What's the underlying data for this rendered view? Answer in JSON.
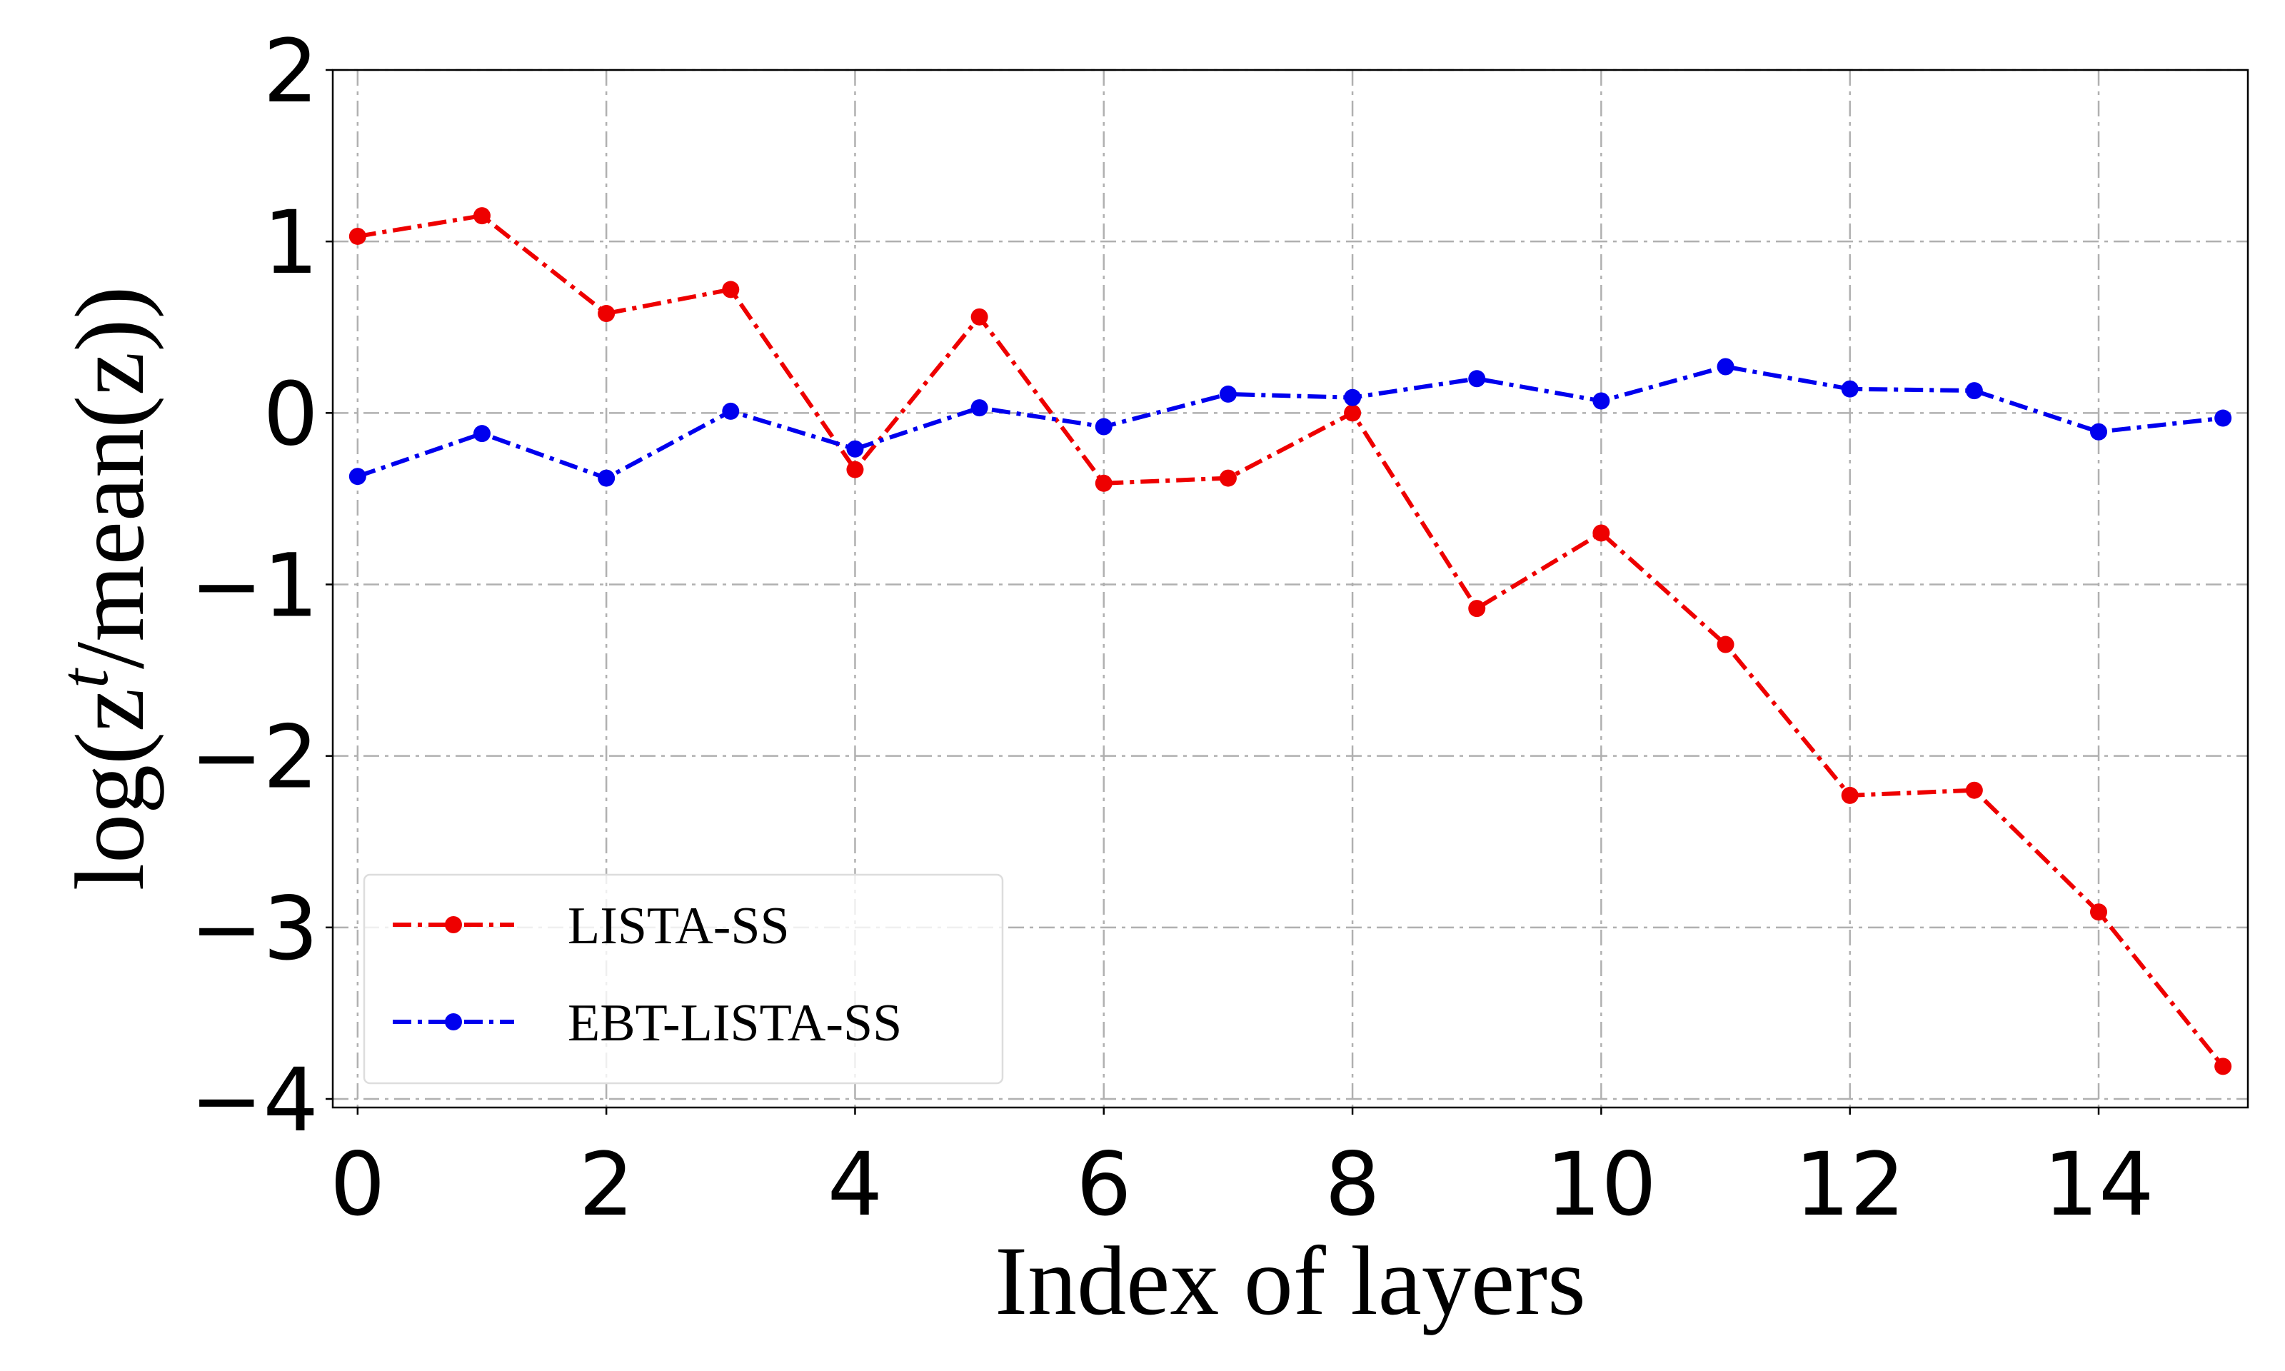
{
  "chart_data": {
    "type": "line",
    "xlabel": "Index of layers",
    "ylabel": [
      "log(z",
      "t",
      "/mean(z))"
    ],
    "x": [
      0,
      1,
      2,
      3,
      4,
      5,
      6,
      7,
      8,
      9,
      10,
      11,
      12,
      13,
      14,
      15
    ],
    "series": [
      {
        "name": "LISTA-SS",
        "color": "#ee0000",
        "values": [
          1.03,
          1.15,
          0.58,
          0.72,
          -0.33,
          0.56,
          -0.41,
          -0.38,
          0.0,
          -1.14,
          -0.7,
          -1.35,
          -2.23,
          -2.2,
          -2.91,
          -3.81
        ]
      },
      {
        "name": "EBT-LISTA-SS",
        "color": "#0000ee",
        "values": [
          -0.37,
          -0.12,
          -0.38,
          0.01,
          -0.21,
          0.03,
          -0.08,
          0.11,
          0.09,
          0.2,
          0.07,
          0.27,
          0.14,
          0.13,
          -0.11,
          -0.03
        ]
      }
    ],
    "xlim": [
      -0.2,
      15.2
    ],
    "ylim": [
      -4.05,
      2
    ],
    "xticks": [
      0,
      2,
      4,
      6,
      8,
      10,
      12,
      14
    ],
    "yticks": [
      {
        "value": -4,
        "label": "−4"
      },
      {
        "value": -3,
        "label": "−3"
      },
      {
        "value": -2,
        "label": "−2"
      },
      {
        "value": -1,
        "label": "−1"
      },
      0,
      1,
      2
    ],
    "grid": true,
    "legend": "lower left"
  }
}
